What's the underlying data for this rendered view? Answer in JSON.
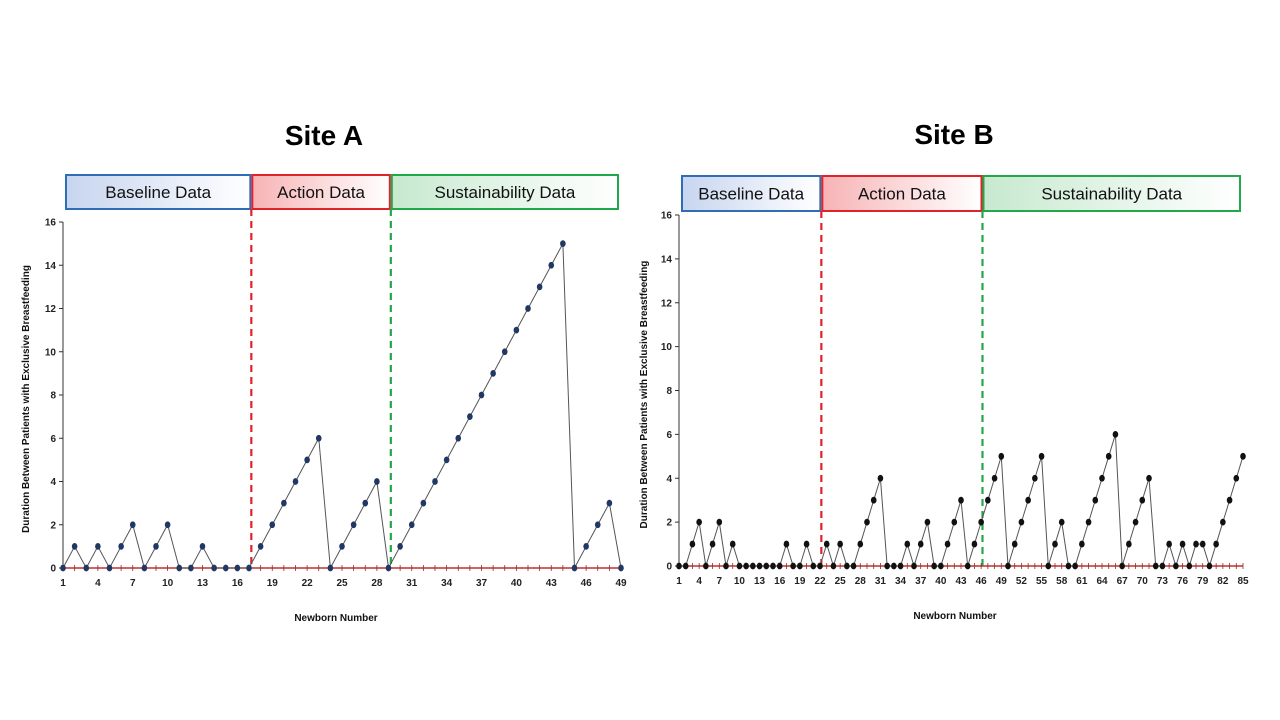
{
  "chart_data": [
    {
      "type": "line",
      "title": "Site A",
      "xlabel": "Newborn Number",
      "ylabel": "Duration Between Patients with Exclusive Breastfeeding",
      "ylim": [
        0,
        16
      ],
      "yticks": [
        0,
        2,
        4,
        6,
        8,
        10,
        12,
        14,
        16
      ],
      "xlim": [
        1,
        49
      ],
      "xticks": [
        1,
        4,
        7,
        10,
        13,
        16,
        19,
        22,
        25,
        28,
        31,
        34,
        37,
        40,
        43,
        46,
        49
      ],
      "grid": false,
      "phases": [
        {
          "label": "Baseline Data",
          "start": 1,
          "end": 17.2,
          "color": "#2f6db5",
          "fill": "#c7d5ef"
        },
        {
          "label": "Action Data",
          "start": 17.2,
          "end": 29.2,
          "color": "#e0232a",
          "fill": "#f7b3b5"
        },
        {
          "label": "Sustainability Data",
          "start": 29.2,
          "end": 49,
          "color": "#22a84a",
          "fill": "#c7e9cf"
        }
      ],
      "phase_boundaries": [
        17.2,
        29.2
      ],
      "x": [
        1,
        2,
        3,
        4,
        5,
        6,
        7,
        8,
        9,
        10,
        11,
        12,
        13,
        14,
        15,
        16,
        17,
        18,
        19,
        20,
        21,
        22,
        23,
        24,
        25,
        26,
        27,
        28,
        29,
        30,
        31,
        32,
        33,
        34,
        35,
        36,
        37,
        38,
        39,
        40,
        41,
        42,
        43,
        44,
        45,
        46,
        47,
        48,
        49
      ],
      "values": [
        0,
        1,
        0,
        1,
        0,
        1,
        2,
        0,
        1,
        2,
        0,
        0,
        1,
        0,
        0,
        0,
        0,
        1,
        2,
        3,
        4,
        5,
        6,
        0,
        1,
        2,
        3,
        4,
        0,
        1,
        2,
        3,
        4,
        5,
        6,
        7,
        8,
        9,
        10,
        11,
        12,
        13,
        14,
        15,
        0,
        1,
        2,
        3,
        0
      ],
      "marker_color": "#1f3864"
    },
    {
      "type": "line",
      "title": "Site B",
      "xlabel": "Newborn Number",
      "ylabel": "Duration Between Patients with Exclusive Breastfeeding",
      "ylim": [
        0,
        16
      ],
      "yticks": [
        0,
        2,
        4,
        6,
        8,
        10,
        12,
        14,
        16
      ],
      "xlim": [
        1,
        85
      ],
      "xticks": [
        1,
        4,
        7,
        10,
        13,
        16,
        19,
        22,
        25,
        28,
        31,
        34,
        37,
        40,
        43,
        46,
        49,
        52,
        55,
        58,
        61,
        64,
        67,
        70,
        73,
        76,
        79,
        82,
        85
      ],
      "grid": false,
      "phases": [
        {
          "label": "Baseline Data",
          "start": 1,
          "end": 22.2,
          "color": "#2f6db5",
          "fill": "#c7d5ef"
        },
        {
          "label": "Action Data",
          "start": 22.2,
          "end": 46.2,
          "color": "#e0232a",
          "fill": "#f7b3b5"
        },
        {
          "label": "Sustainability Data",
          "start": 46.2,
          "end": 85,
          "color": "#22a84a",
          "fill": "#c7e9cf"
        }
      ],
      "phase_boundaries": [
        22.2,
        46.2
      ],
      "x": [
        1,
        2,
        3,
        4,
        5,
        6,
        7,
        8,
        9,
        10,
        11,
        12,
        13,
        14,
        15,
        16,
        17,
        18,
        19,
        20,
        21,
        22,
        23,
        24,
        25,
        26,
        27,
        28,
        29,
        30,
        31,
        32,
        33,
        34,
        35,
        36,
        37,
        38,
        39,
        40,
        41,
        42,
        43,
        44,
        45,
        46,
        47,
        48,
        49,
        50,
        51,
        52,
        53,
        54,
        55,
        56,
        57,
        58,
        59,
        60,
        61,
        62,
        63,
        64,
        65,
        66,
        67,
        68,
        69,
        70,
        71,
        72,
        73,
        74,
        75,
        76,
        77,
        78,
        79,
        80,
        81,
        82,
        83,
        84,
        85
      ],
      "values": [
        0,
        0,
        1,
        2,
        0,
        1,
        2,
        0,
        1,
        0,
        0,
        0,
        0,
        0,
        0,
        0,
        1,
        0,
        0,
        1,
        0,
        0,
        1,
        0,
        1,
        0,
        0,
        1,
        2,
        3,
        4,
        0,
        0,
        0,
        1,
        0,
        1,
        2,
        0,
        0,
        1,
        2,
        3,
        0,
        1,
        2,
        3,
        4,
        5,
        0,
        1,
        2,
        3,
        4,
        5,
        0,
        1,
        2,
        0,
        0,
        1,
        2,
        3,
        4,
        5,
        6,
        0,
        1,
        2,
        3,
        4,
        0,
        0,
        1,
        0,
        1,
        0,
        1,
        1,
        0,
        1,
        2,
        3,
        4,
        5
      ],
      "marker_color": "#111111"
    }
  ]
}
